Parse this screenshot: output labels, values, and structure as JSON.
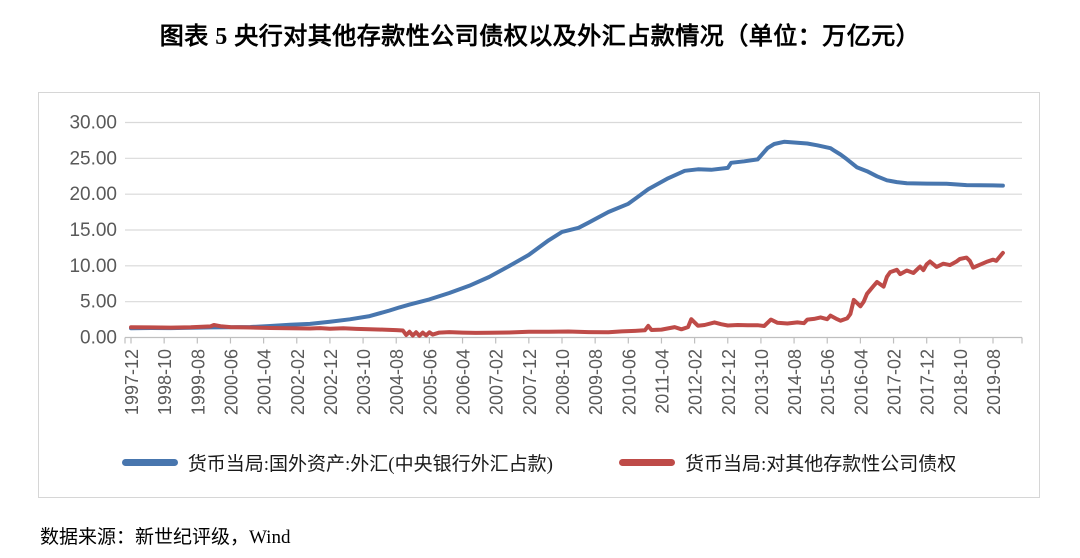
{
  "title": "图表 5  央行对其他存款性公司债权以及外汇占款情况（单位：万亿元）",
  "source_note": "数据来源：新世纪评级，Wind",
  "colors": {
    "fx_series": "#4876AE",
    "claims_series": "#BE4B48",
    "gridline": "#D9D9D9",
    "axis": "#BFBFBF",
    "tick_text": "#595959"
  },
  "chart_data": {
    "type": "line",
    "title": "图表 5  央行对其他存款性公司债权以及外汇占款情况（单位：万亿元）",
    "unit": "万亿元",
    "grid": true,
    "legend_position": "bottom",
    "y_axis": {
      "min": 0,
      "max": 30,
      "tick_step": 5,
      "tick_labels": [
        "30.00",
        "25.00",
        "20.00",
        "15.00",
        "10.00",
        "5.00",
        "0.00"
      ]
    },
    "x_axis": {
      "start": "1997-12",
      "end": "2019-08",
      "tick_interval_months": 10,
      "tick_labels": [
        "1997-12",
        "1998-10",
        "1999-08",
        "2000-06",
        "2001-04",
        "2002-02",
        "2002-12",
        "2003-10",
        "2004-08",
        "2005-06",
        "2006-04",
        "2007-02",
        "2007-12",
        "2008-10",
        "2009-08",
        "2010-06",
        "2011-04",
        "2012-02",
        "2012-12",
        "2013-10",
        "2014-08",
        "2015-06",
        "2016-04",
        "2017-02",
        "2017-12",
        "2018-10",
        "2019-08"
      ]
    },
    "series": [
      {
        "name": "货币当局:国外资产:外汇(中央银行外汇占款)",
        "color": "#4876AE",
        "points": [
          [
            "1997-12",
            1.3
          ],
          [
            "1998-06",
            1.32
          ],
          [
            "1998-12",
            1.31
          ],
          [
            "1999-06",
            1.36
          ],
          [
            "1999-12",
            1.41
          ],
          [
            "2000-06",
            1.43
          ],
          [
            "2000-12",
            1.47
          ],
          [
            "2001-06",
            1.6
          ],
          [
            "2001-12",
            1.77
          ],
          [
            "2002-06",
            1.9
          ],
          [
            "2002-12",
            2.21
          ],
          [
            "2003-06",
            2.54
          ],
          [
            "2003-12",
            2.98
          ],
          [
            "2004-06",
            3.77
          ],
          [
            "2004-09",
            4.2
          ],
          [
            "2004-12",
            4.59
          ],
          [
            "2005-06",
            5.31
          ],
          [
            "2005-12",
            6.21
          ],
          [
            "2006-06",
            7.21
          ],
          [
            "2006-12",
            8.44
          ],
          [
            "2007-06",
            9.96
          ],
          [
            "2007-12",
            11.52
          ],
          [
            "2008-06",
            13.56
          ],
          [
            "2008-10",
            14.73
          ],
          [
            "2008-12",
            14.96
          ],
          [
            "2009-03",
            15.3
          ],
          [
            "2009-06",
            16.02
          ],
          [
            "2009-12",
            17.51
          ],
          [
            "2010-06",
            18.65
          ],
          [
            "2010-12",
            20.68
          ],
          [
            "2011-06",
            22.22
          ],
          [
            "2011-11",
            23.26
          ],
          [
            "2012-03",
            23.47
          ],
          [
            "2012-07",
            23.4
          ],
          [
            "2012-12",
            23.67
          ],
          [
            "2013-01",
            24.38
          ],
          [
            "2013-05",
            24.58
          ],
          [
            "2013-09",
            24.85
          ],
          [
            "2013-12",
            26.43
          ],
          [
            "2014-02",
            27.0
          ],
          [
            "2014-05",
            27.3
          ],
          [
            "2014-08",
            27.21
          ],
          [
            "2014-12",
            27.07
          ],
          [
            "2015-03",
            26.82
          ],
          [
            "2015-07",
            26.41
          ],
          [
            "2015-08",
            26.1
          ],
          [
            "2015-10",
            25.53
          ],
          [
            "2015-12",
            24.85
          ],
          [
            "2016-03",
            23.73
          ],
          [
            "2016-06",
            23.2
          ],
          [
            "2016-09",
            22.5
          ],
          [
            "2016-12",
            21.94
          ],
          [
            "2017-03",
            21.68
          ],
          [
            "2017-06",
            21.53
          ],
          [
            "2017-12",
            21.48
          ],
          [
            "2018-06",
            21.45
          ],
          [
            "2018-12",
            21.26
          ],
          [
            "2019-04",
            21.25
          ],
          [
            "2019-08",
            21.22
          ],
          [
            "2019-11",
            21.2
          ]
        ]
      },
      {
        "name": "货币当局:对其他存款性公司债权",
        "color": "#BE4B48",
        "points": [
          [
            "1997-12",
            1.44
          ],
          [
            "1998-06",
            1.41
          ],
          [
            "1998-12",
            1.38
          ],
          [
            "1999-06",
            1.42
          ],
          [
            "1999-12",
            1.55
          ],
          [
            "2000-01",
            1.75
          ],
          [
            "2000-03",
            1.58
          ],
          [
            "2000-06",
            1.45
          ],
          [
            "2000-12",
            1.4
          ],
          [
            "2001-06",
            1.32
          ],
          [
            "2001-12",
            1.28
          ],
          [
            "2002-06",
            1.25
          ],
          [
            "2002-09",
            1.31
          ],
          [
            "2002-12",
            1.22
          ],
          [
            "2003-04",
            1.28
          ],
          [
            "2003-08",
            1.2
          ],
          [
            "2003-12",
            1.15
          ],
          [
            "2004-04",
            1.1
          ],
          [
            "2004-08",
            1.03
          ],
          [
            "2004-10",
            0.98
          ],
          [
            "2004-11",
            0.35
          ],
          [
            "2004-12",
            0.8
          ],
          [
            "2005-01",
            0.28
          ],
          [
            "2005-02",
            0.72
          ],
          [
            "2005-03",
            0.24
          ],
          [
            "2005-04",
            0.68
          ],
          [
            "2005-05",
            0.3
          ],
          [
            "2005-06",
            0.72
          ],
          [
            "2005-07",
            0.4
          ],
          [
            "2005-09",
            0.68
          ],
          [
            "2005-12",
            0.75
          ],
          [
            "2006-04",
            0.68
          ],
          [
            "2006-08",
            0.64
          ],
          [
            "2006-12",
            0.66
          ],
          [
            "2007-06",
            0.7
          ],
          [
            "2007-12",
            0.79
          ],
          [
            "2008-06",
            0.8
          ],
          [
            "2008-12",
            0.84
          ],
          [
            "2009-06",
            0.76
          ],
          [
            "2009-12",
            0.72
          ],
          [
            "2010-04",
            0.85
          ],
          [
            "2010-08",
            0.92
          ],
          [
            "2010-11",
            1.0
          ],
          [
            "2010-12",
            1.62
          ],
          [
            "2011-01",
            1.05
          ],
          [
            "2011-04",
            1.1
          ],
          [
            "2011-08",
            1.45
          ],
          [
            "2011-10",
            1.15
          ],
          [
            "2011-12",
            1.45
          ],
          [
            "2012-01",
            2.55
          ],
          [
            "2012-03",
            1.65
          ],
          [
            "2012-05",
            1.75
          ],
          [
            "2012-08",
            2.1
          ],
          [
            "2012-10",
            1.85
          ],
          [
            "2012-12",
            1.67
          ],
          [
            "2013-03",
            1.74
          ],
          [
            "2013-06",
            1.7
          ],
          [
            "2013-09",
            1.72
          ],
          [
            "2013-11",
            1.6
          ],
          [
            "2014-01",
            2.5
          ],
          [
            "2014-03",
            2.05
          ],
          [
            "2014-06",
            1.95
          ],
          [
            "2014-09",
            2.1
          ],
          [
            "2014-11",
            2.0
          ],
          [
            "2014-12",
            2.5
          ],
          [
            "2015-02",
            2.6
          ],
          [
            "2015-04",
            2.8
          ],
          [
            "2015-06",
            2.55
          ],
          [
            "2015-07",
            3.05
          ],
          [
            "2015-09",
            2.55
          ],
          [
            "2015-10",
            2.35
          ],
          [
            "2015-12",
            2.66
          ],
          [
            "2016-01",
            3.3
          ],
          [
            "2016-02",
            5.25
          ],
          [
            "2016-03",
            4.8
          ],
          [
            "2016-04",
            4.35
          ],
          [
            "2016-05",
            5.0
          ],
          [
            "2016-06",
            6.1
          ],
          [
            "2016-08",
            7.2
          ],
          [
            "2016-09",
            7.75
          ],
          [
            "2016-11",
            7.1
          ],
          [
            "2016-12",
            8.47
          ],
          [
            "2017-01",
            9.13
          ],
          [
            "2017-03",
            9.45
          ],
          [
            "2017-04",
            8.85
          ],
          [
            "2017-06",
            9.35
          ],
          [
            "2017-08",
            9.0
          ],
          [
            "2017-10",
            9.9
          ],
          [
            "2017-11",
            9.4
          ],
          [
            "2017-12",
            10.22
          ],
          [
            "2018-01",
            10.6
          ],
          [
            "2018-03",
            9.85
          ],
          [
            "2018-05",
            10.3
          ],
          [
            "2018-07",
            10.1
          ],
          [
            "2018-09",
            10.6
          ],
          [
            "2018-10",
            10.95
          ],
          [
            "2018-12",
            11.15
          ],
          [
            "2019-01",
            10.7
          ],
          [
            "2019-02",
            9.75
          ],
          [
            "2019-04",
            10.15
          ],
          [
            "2019-06",
            10.55
          ],
          [
            "2019-08",
            10.85
          ],
          [
            "2019-09",
            10.7
          ],
          [
            "2019-11",
            11.8
          ]
        ]
      }
    ]
  }
}
